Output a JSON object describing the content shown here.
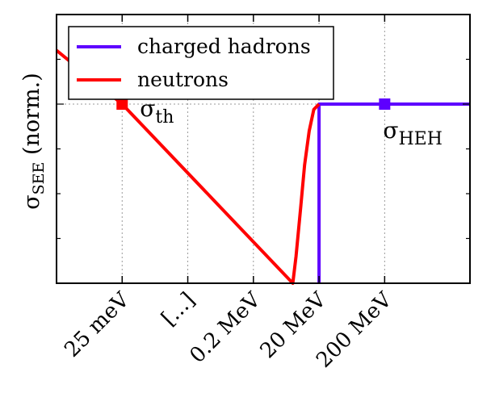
{
  "chart_data": {
    "type": "line",
    "ylabel": {
      "main": "σ",
      "sub": "SEE",
      "rest": " (norm.)"
    },
    "grid": true,
    "legend_position": "top-left",
    "x_ticks": [
      {
        "label": "25 meV",
        "x": 1
      },
      {
        "label": "[...]",
        "x": 2
      },
      {
        "label": "0.2 MeV",
        "x": 3
      },
      {
        "label": "20 MeV",
        "x": 4
      },
      {
        "label": "200 MeV",
        "x": 5
      }
    ],
    "xlim": [
      0,
      6.3
    ],
    "ylim": [
      0,
      1.5
    ],
    "series": [
      {
        "name": "charged hadrons",
        "color": "#5e00ff",
        "points": [
          [
            4.0,
            0.0
          ],
          [
            4.0,
            1.0
          ],
          [
            6.3,
            1.0
          ]
        ],
        "marker": {
          "x": 5.0,
          "y": 1.0,
          "label_main": "σ",
          "label_sub": "HEH"
        }
      },
      {
        "name": "neutrons",
        "color": "#ff0000",
        "points": [
          [
            0.0,
            1.3
          ],
          [
            1.0,
            1.0
          ],
          [
            3.6,
            0.0
          ],
          [
            3.65,
            0.15
          ],
          [
            3.72,
            0.42
          ],
          [
            3.78,
            0.66
          ],
          [
            3.85,
            0.85
          ],
          [
            3.92,
            0.97
          ],
          [
            4.0,
            1.0
          ]
        ],
        "marker": {
          "x": 1.0,
          "y": 1.0,
          "label_main": "σ",
          "label_sub": "th"
        }
      }
    ]
  }
}
